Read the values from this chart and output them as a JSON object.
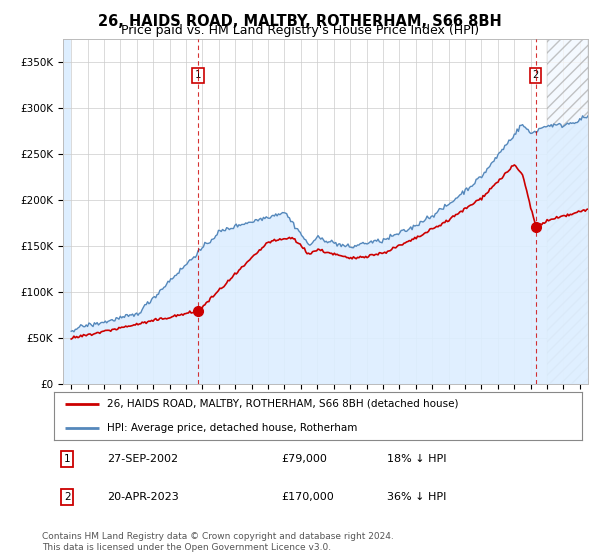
{
  "title": "26, HAIDS ROAD, MALTBY, ROTHERHAM, S66 8BH",
  "subtitle": "Price paid vs. HM Land Registry's House Price Index (HPI)",
  "title_fontsize": 10.5,
  "subtitle_fontsize": 9,
  "ylim": [
    0,
    375000
  ],
  "yticks": [
    0,
    50000,
    100000,
    150000,
    200000,
    250000,
    300000,
    350000
  ],
  "ytick_labels": [
    "£0",
    "£50K",
    "£100K",
    "£150K",
    "£200K",
    "£250K",
    "£300K",
    "£350K"
  ],
  "hpi_color": "#5588bb",
  "hpi_fill_color": "#ddeeff",
  "price_color": "#cc0000",
  "dashed_line_color": "#cc0000",
  "background_color": "#ffffff",
  "grid_color": "#cccccc",
  "sale1_x": 2002.74,
  "sale1_y": 79000,
  "sale1_label": "1",
  "sale1_date": "27-SEP-2002",
  "sale1_price": "£79,000",
  "sale1_hpi": "18% ↓ HPI",
  "sale2_x": 2023.3,
  "sale2_y": 170000,
  "sale2_label": "2",
  "sale2_date": "20-APR-2023",
  "sale2_price": "£170,000",
  "sale2_hpi": "36% ↓ HPI",
  "legend_line1": "26, HAIDS ROAD, MALTBY, ROTHERHAM, S66 8BH (detached house)",
  "legend_line2": "HPI: Average price, detached house, Rotherham",
  "footer1": "Contains HM Land Registry data © Crown copyright and database right 2024.",
  "footer2": "This data is licensed under the Open Government Licence v3.0.",
  "xmin": 1994.5,
  "xmax": 2026.5,
  "hatch_start": 2024.0
}
